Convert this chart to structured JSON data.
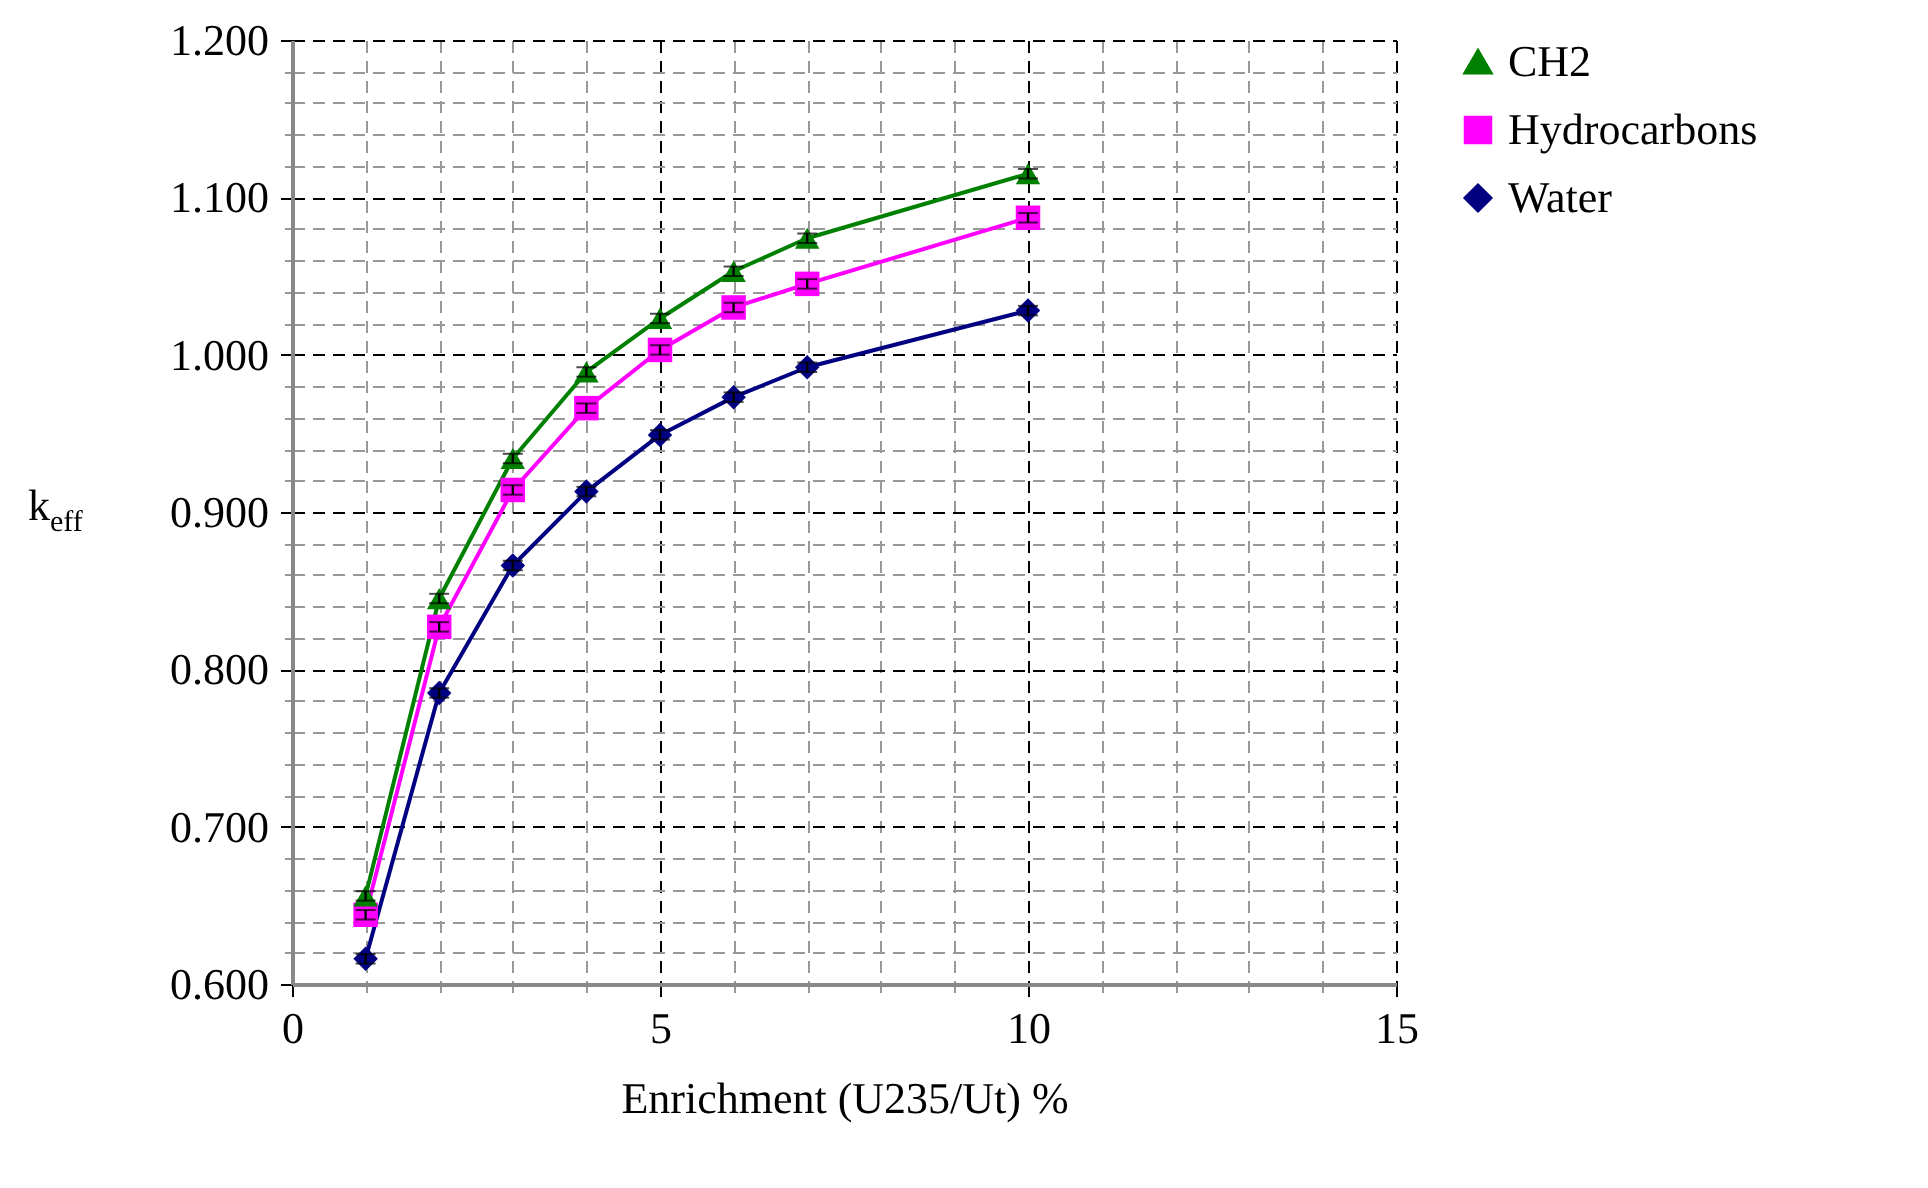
{
  "chart_data": {
    "type": "line",
    "xlabel": "Enrichment (U235/Ut) %",
    "ylabel": "k$_{eff}$",
    "x": [
      1,
      2,
      3,
      4,
      5,
      6,
      7,
      10
    ],
    "series": [
      {
        "name": "CH2",
        "color": "#008000",
        "marker": "triangle",
        "values": [
          0.656,
          0.845,
          0.934,
          0.989,
          1.023,
          1.053,
          1.074,
          1.115
        ],
        "errors": [
          0.003,
          0.003,
          0.003,
          0.003,
          0.003,
          0.003,
          0.003,
          0.003
        ]
      },
      {
        "name": "Hydrocarbons",
        "color": "#ff00ff",
        "marker": "square",
        "values": [
          0.644,
          0.827,
          0.914,
          0.966,
          1.003,
          1.03,
          1.045,
          1.087
        ],
        "errors": [
          0.003,
          0.003,
          0.003,
          0.003,
          0.003,
          0.003,
          0.003,
          0.003
        ]
      },
      {
        "name": "Water",
        "color": "#000080",
        "marker": "diamond",
        "values": [
          0.616,
          0.785,
          0.866,
          0.913,
          0.949,
          0.973,
          0.992,
          1.028
        ],
        "errors": [
          0.003,
          0.003,
          0.003,
          0.003,
          0.003,
          0.003,
          0.003,
          0.003
        ]
      }
    ],
    "xlim": [
      0,
      15
    ],
    "ylim": [
      0.6,
      1.2
    ],
    "xticks": [
      0,
      {
        "value": 1,
        "label": null
      },
      {
        "value": 2,
        "label": null
      },
      {
        "value": 3,
        "label": null
      },
      {
        "value": 4,
        "label": null
      },
      5,
      {
        "value": 6,
        "label": null
      },
      {
        "value": 7,
        "label": null
      },
      {
        "value": 8,
        "label": null
      },
      {
        "value": 9,
        "label": null
      },
      10,
      {
        "value": 11,
        "label": null
      },
      {
        "value": 12,
        "label": null
      },
      {
        "value": 13,
        "label": null
      },
      {
        "value": 14,
        "label": null
      },
      15
    ],
    "yticks": [
      {
        "value": 0.6,
        "label": "0.600"
      },
      {
        "value": 0.62,
        "label": null
      },
      {
        "value": 0.64,
        "label": null
      },
      {
        "value": 0.66,
        "label": null
      },
      {
        "value": 0.68,
        "label": null
      },
      {
        "value": 0.7,
        "label": "0.700"
      },
      {
        "value": 0.72,
        "label": null
      },
      {
        "value": 0.74,
        "label": null
      },
      {
        "value": 0.76,
        "label": null
      },
      {
        "value": 0.78,
        "label": null
      },
      {
        "value": 0.8,
        "label": "0.800"
      },
      {
        "value": 0.82,
        "label": null
      },
      {
        "value": 0.84,
        "label": null
      },
      {
        "value": 0.86,
        "label": null
      },
      {
        "value": 0.88,
        "label": null
      },
      {
        "value": 0.9,
        "label": "0.900"
      },
      {
        "value": 0.92,
        "label": null
      },
      {
        "value": 0.94,
        "label": null
      },
      {
        "value": 0.96,
        "label": null
      },
      {
        "value": 0.98,
        "label": null
      },
      {
        "value": 1.0,
        "label": "1.000"
      },
      {
        "value": 1.02,
        "label": null
      },
      {
        "value": 1.04,
        "label": null
      },
      {
        "value": 1.06,
        "label": null
      },
      {
        "value": 1.08,
        "label": null
      },
      {
        "value": 1.1,
        "label": "1.100"
      },
      {
        "value": 1.12,
        "label": null
      },
      {
        "value": 1.14,
        "label": null
      },
      {
        "value": 1.16,
        "label": null
      },
      {
        "value": 1.18,
        "label": null
      },
      {
        "value": 1.2,
        "label": "1.200"
      }
    ],
    "grid": true,
    "legend": "right",
    "line_style": "solid"
  }
}
